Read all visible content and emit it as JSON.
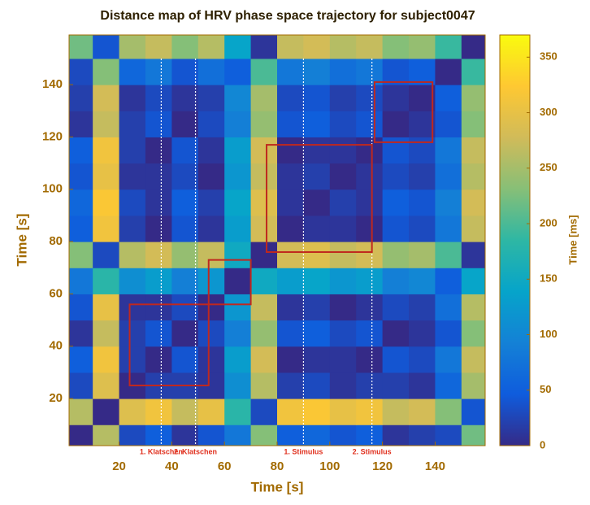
{
  "chart_data": {
    "type": "heatmap",
    "title": "Distance map of HRV phase space trajectory for subject0047",
    "x_label": "Time [s]",
    "y_label": "Time [s]",
    "colorbar_label": "Time [ms]",
    "x": [
      5,
      15,
      25,
      35,
      45,
      55,
      65,
      75,
      85,
      95,
      105,
      115,
      125,
      135,
      145,
      155
    ],
    "y": [
      5,
      15,
      25,
      35,
      45,
      55,
      65,
      75,
      85,
      95,
      105,
      115,
      125,
      135,
      145,
      155
    ],
    "z": [
      [
        0,
        260,
        30,
        50,
        10,
        40,
        80,
        230,
        50,
        60,
        40,
        50,
        10,
        20,
        30,
        220
      ],
      [
        260,
        0,
        290,
        310,
        270,
        300,
        180,
        30,
        310,
        320,
        300,
        310,
        270,
        280,
        230,
        40
      ],
      [
        30,
        290,
        0,
        20,
        20,
        10,
        110,
        260,
        20,
        30,
        10,
        20,
        20,
        10,
        60,
        250
      ],
      [
        50,
        310,
        20,
        0,
        40,
        10,
        130,
        280,
        0,
        10,
        10,
        0,
        40,
        30,
        80,
        270
      ],
      [
        10,
        270,
        20,
        40,
        0,
        30,
        90,
        240,
        40,
        50,
        30,
        40,
        0,
        10,
        40,
        230
      ],
      [
        40,
        300,
        10,
        10,
        30,
        0,
        120,
        270,
        10,
        20,
        0,
        10,
        30,
        20,
        70,
        260
      ],
      [
        80,
        180,
        110,
        130,
        90,
        120,
        0,
        150,
        130,
        140,
        120,
        130,
        90,
        100,
        50,
        140
      ],
      [
        230,
        30,
        260,
        280,
        240,
        270,
        150,
        0,
        280,
        290,
        270,
        280,
        240,
        250,
        200,
        10
      ],
      [
        50,
        310,
        20,
        0,
        40,
        10,
        130,
        280,
        0,
        10,
        10,
        0,
        40,
        30,
        80,
        270
      ],
      [
        60,
        320,
        30,
        10,
        50,
        20,
        140,
        290,
        10,
        0,
        20,
        10,
        50,
        40,
        90,
        280
      ],
      [
        40,
        300,
        10,
        10,
        30,
        0,
        120,
        270,
        10,
        20,
        0,
        10,
        30,
        20,
        70,
        260
      ],
      [
        50,
        310,
        20,
        0,
        40,
        10,
        130,
        280,
        0,
        10,
        10,
        0,
        40,
        30,
        80,
        270
      ],
      [
        10,
        270,
        20,
        40,
        0,
        30,
        90,
        240,
        40,
        50,
        30,
        40,
        0,
        10,
        40,
        230
      ],
      [
        20,
        280,
        10,
        30,
        10,
        20,
        100,
        250,
        30,
        40,
        20,
        30,
        10,
        0,
        50,
        240
      ],
      [
        30,
        230,
        60,
        80,
        40,
        70,
        50,
        200,
        80,
        90,
        70,
        80,
        40,
        50,
        0,
        190
      ],
      [
        220,
        40,
        250,
        270,
        230,
        260,
        140,
        10,
        270,
        280,
        260,
        270,
        230,
        240,
        190,
        0
      ]
    ],
    "colormap": [
      "#352a87",
      "#0f5cdd",
      "#1481d6",
      "#06a4ca",
      "#2eb7a4",
      "#87bf77",
      "#d1bb59",
      "#fec832",
      "#f9fb0e"
    ],
    "xlim": [
      1,
      159
    ],
    "ylim": [
      2,
      159
    ],
    "zlim": [
      0,
      370
    ],
    "xticks": [
      20,
      40,
      60,
      80,
      100,
      120,
      140
    ],
    "yticks": [
      20,
      40,
      60,
      80,
      100,
      120,
      140
    ],
    "zticks": [
      0,
      50,
      100,
      150,
      200,
      250,
      300,
      350
    ],
    "boxes": [
      {
        "x": [
          24,
          54
        ],
        "y": [
          25,
          56
        ]
      },
      {
        "x": [
          54,
          70
        ],
        "y": [
          56,
          73
        ]
      },
      {
        "x": [
          76,
          116
        ],
        "y": [
          76,
          117
        ]
      },
      {
        "x": [
          117,
          139
        ],
        "y": [
          118,
          141
        ]
      }
    ],
    "box_color": "#c0281e",
    "events": [
      {
        "x": 36,
        "label": "1. Klatschen"
      },
      {
        "x": 49,
        "label": "2. Klatschen"
      },
      {
        "x": 90,
        "label": "1. Stimulus"
      },
      {
        "x": 116,
        "label": "2. Stimulus"
      }
    ]
  }
}
